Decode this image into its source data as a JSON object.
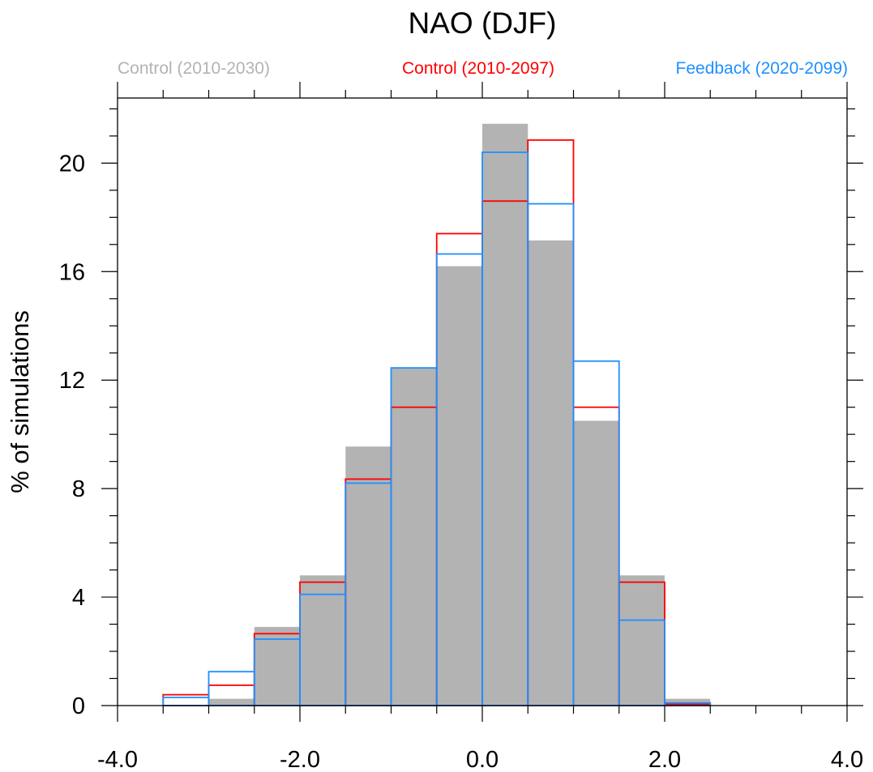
{
  "chart_data": {
    "type": "bar",
    "subtype": "histogram",
    "title": "NAO (DJF)",
    "xlabel": "",
    "ylabel": "% of simulations",
    "xlim": [
      -4.0,
      4.0
    ],
    "ylim": [
      0,
      22.4
    ],
    "x_ticks": [
      -4.0,
      -2.0,
      0.0,
      2.0,
      4.0
    ],
    "x_tick_labels": [
      "-4.0",
      "-2.0",
      "0.0",
      "2.0",
      "4.0"
    ],
    "x_minor_step": 0.5,
    "y_ticks": [
      0,
      4,
      8,
      12,
      16,
      20
    ],
    "y_tick_labels": [
      "0",
      "4",
      "8",
      "12",
      "16",
      "20"
    ],
    "y_minor_step": 1,
    "grid": false,
    "legend_placement": "top",
    "bin_edges": [
      -3.5,
      -3.0,
      -2.5,
      -2.0,
      -1.5,
      -1.0,
      -0.5,
      0.0,
      0.5,
      1.0,
      1.5,
      2.0,
      2.5
    ],
    "series": [
      {
        "name": "Control (2010-2030)",
        "style": "filled",
        "color": "#b3b3b3",
        "values": [
          0.0,
          0.25,
          2.9,
          4.8,
          9.55,
          12.45,
          16.2,
          21.45,
          17.15,
          10.5,
          4.8,
          0.25
        ]
      },
      {
        "name": "Control (2010-2097)",
        "style": "outline",
        "color": "#ff0000",
        "values": [
          0.4,
          0.75,
          2.65,
          4.55,
          8.35,
          11.0,
          17.4,
          18.6,
          20.85,
          11.0,
          4.55,
          0.05
        ]
      },
      {
        "name": "Feedback (2020-2099)",
        "style": "outline",
        "color": "#1e90ff",
        "values": [
          0.3,
          1.25,
          2.45,
          4.1,
          8.2,
          12.45,
          16.65,
          20.4,
          18.5,
          12.7,
          3.15,
          0.1
        ]
      }
    ]
  }
}
